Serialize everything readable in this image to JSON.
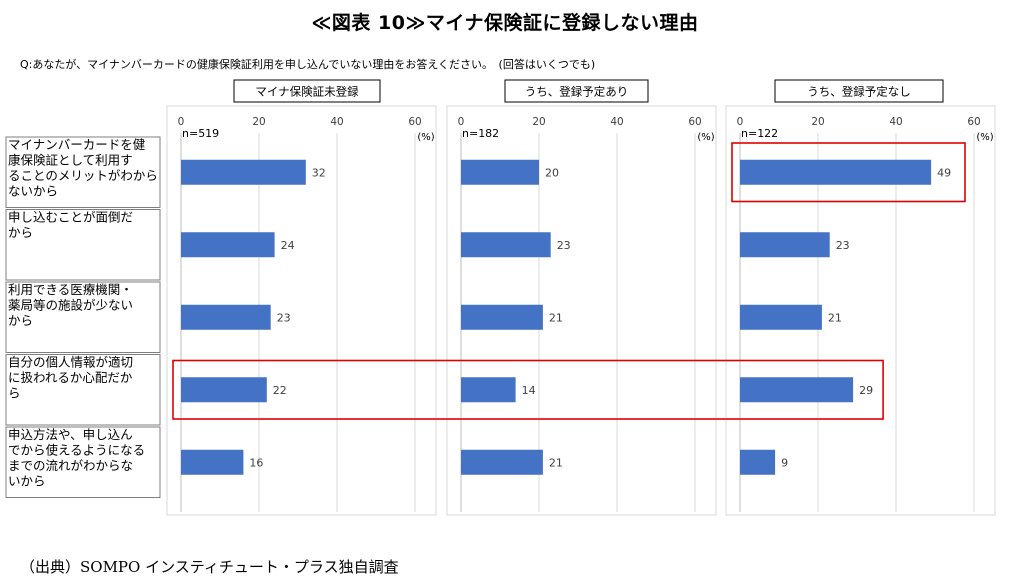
{
  "figure_title": "≪図表 10≫マイナ保険証に登録しない理由",
  "question": "Q:あなたが、マイナンバーカードの健康保険証利用を申し込んでいない理由をお答えください。　(回答はいくつでも)",
  "source": "（出典）SOMPO インスティチュート・プラス独自調査",
  "chart_data": {
    "type": "bar",
    "orientation": "horizontal",
    "categories": [
      [
        "マイナンバーカードを健",
        "康保険証として利用す",
        "ることのメリットがわから",
        "ないから"
      ],
      [
        "申し込むことが面倒だ",
        "から"
      ],
      [
        "利用できる医療機関・",
        "薬局等の施設が少ない",
        "から"
      ],
      [
        "自分の個人情報が適切",
        "に扱われるか心配だか",
        "ら"
      ],
      [
        "申込方法や、申し込ん",
        "でから使えるようになる",
        "までの流れがわからな",
        "いから"
      ]
    ],
    "xlim": [
      0,
      60
    ],
    "ticks": [
      0,
      20,
      40,
      60
    ],
    "unit": "(%)",
    "grid": true,
    "panels": [
      {
        "name": "マイナ保険証未登録",
        "n": "n=519",
        "values": [
          32,
          24,
          23,
          22,
          16
        ]
      },
      {
        "name": "うち、登録予定あり",
        "n": "n=182",
        "values": [
          20,
          23,
          21,
          14,
          21
        ]
      },
      {
        "name": "うち、登録予定なし",
        "n": "n=122",
        "values": [
          49,
          23,
          21,
          29,
          9
        ]
      }
    ],
    "highlights": [
      {
        "panels": [
          2
        ],
        "category": 0
      },
      {
        "panels": [
          0,
          1,
          2
        ],
        "category": 3
      }
    ],
    "colors": {
      "bar": "#4472C4",
      "highlight": "#E00000",
      "grid": "#D9D9D9",
      "axis": "#BFBFBF"
    }
  }
}
